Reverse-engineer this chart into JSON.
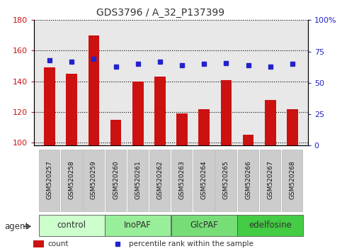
{
  "title": "GDS3796 / A_32_P137399",
  "samples": [
    "GSM520257",
    "GSM520258",
    "GSM520259",
    "GSM520260",
    "GSM520261",
    "GSM520262",
    "GSM520263",
    "GSM520264",
    "GSM520265",
    "GSM520266",
    "GSM520267",
    "GSM520268"
  ],
  "counts": [
    149,
    145,
    170,
    115,
    140,
    143,
    119,
    122,
    141,
    105,
    128,
    122
  ],
  "percentiles": [
    68,
    67,
    69,
    63,
    65,
    67,
    64,
    65,
    66,
    64,
    63,
    65
  ],
  "groups": [
    {
      "label": "control",
      "start": 0,
      "end": 3,
      "color": "#ccffcc"
    },
    {
      "label": "InoPAF",
      "start": 3,
      "end": 6,
      "color": "#99ee99"
    },
    {
      "label": "GlcPAF",
      "start": 6,
      "end": 9,
      "color": "#77dd77"
    },
    {
      "label": "edelfosine",
      "start": 9,
      "end": 12,
      "color": "#44cc44"
    }
  ],
  "ylim_left": [
    98,
    180
  ],
  "ylim_right": [
    0,
    100
  ],
  "yticks_left": [
    100,
    120,
    140,
    160,
    180
  ],
  "yticks_right": [
    0,
    25,
    50,
    75,
    100
  ],
  "bar_color": "#cc1111",
  "dot_color": "#2222cc",
  "bar_width": 0.5,
  "bg_color": "#ffffff",
  "plot_bg": "#e8e8e8",
  "tick_bg": "#cccccc",
  "xlabel_color": "#cc1111",
  "ylabel_right_color": "#2222cc",
  "grid_color": "#000000",
  "legend_count_color": "#cc1111",
  "legend_dot_color": "#2222cc"
}
